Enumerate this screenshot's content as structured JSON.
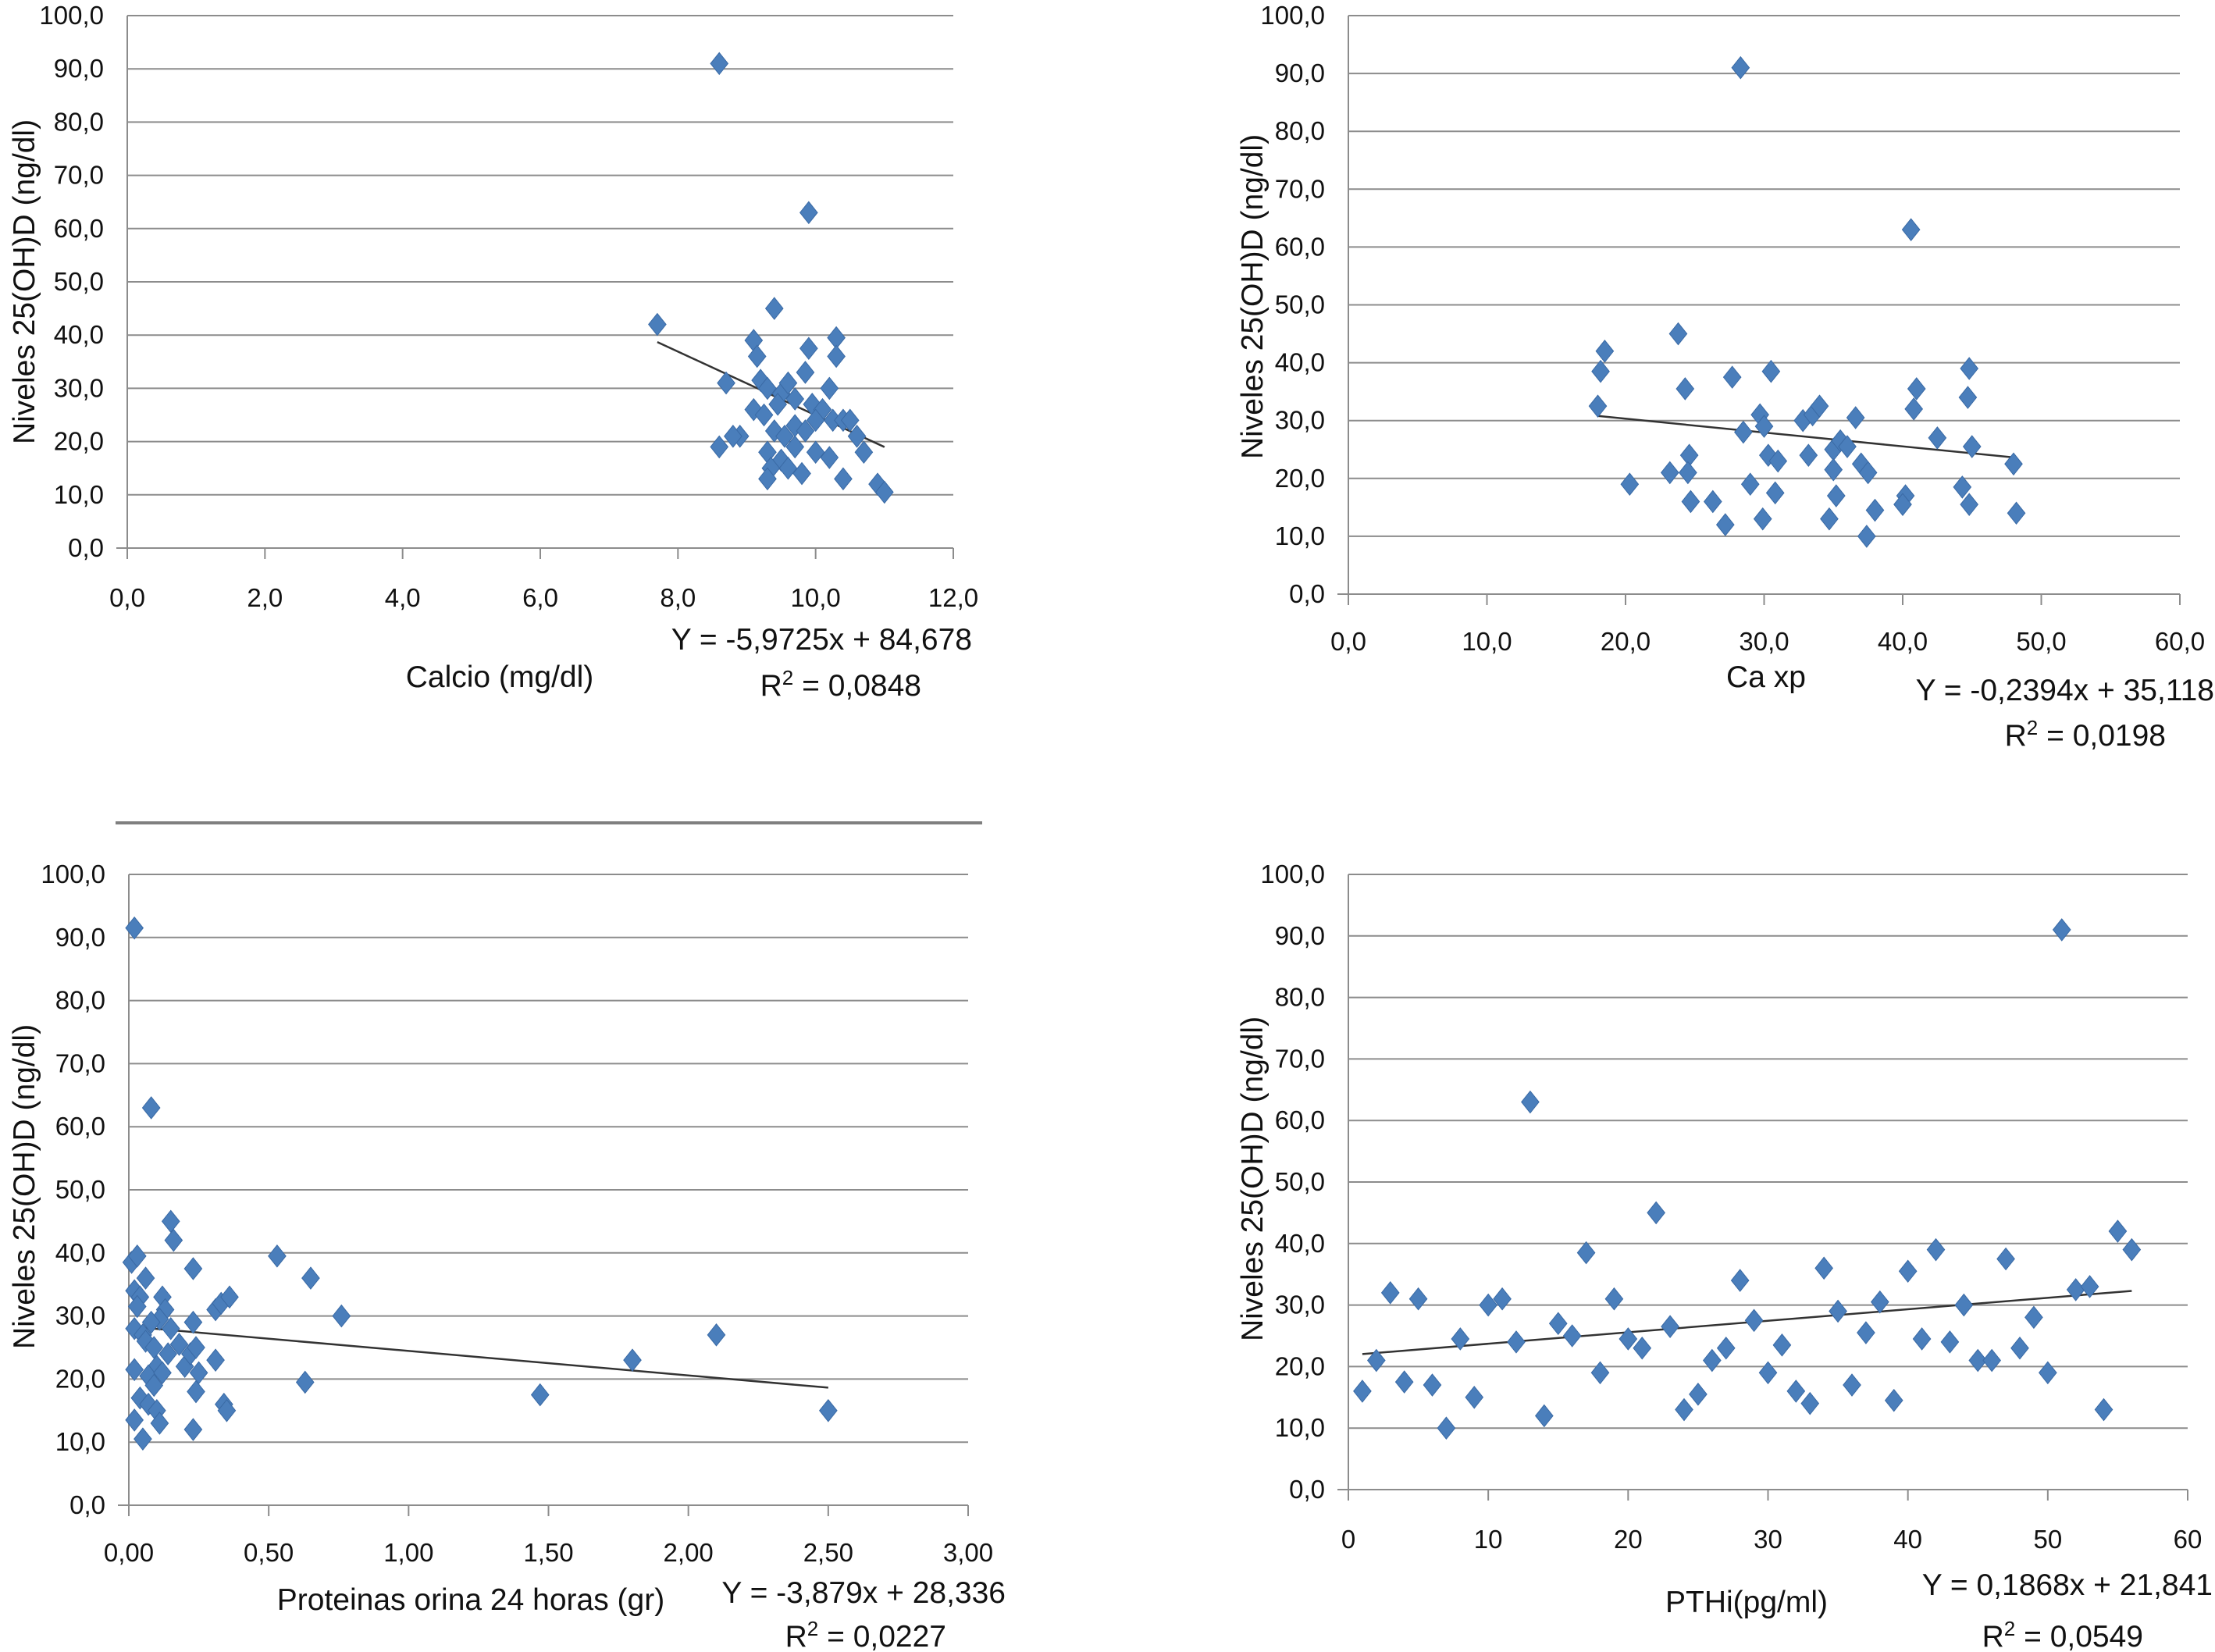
{
  "chart_data": [
    {
      "type": "scatter",
      "xlabel": "Calcio (mg/dl)",
      "ylabel": "Niveles 25(OH)D (ng/dl)",
      "xlim": [
        0,
        12
      ],
      "ylim": [
        0,
        100
      ],
      "xticks": [
        0,
        2,
        4,
        6,
        8,
        10,
        12
      ],
      "xtick_labels": [
        "0,0",
        "2,0",
        "4,0",
        "6,0",
        "8,0",
        "10,0",
        "12,0"
      ],
      "yticks": [
        0,
        10,
        20,
        30,
        40,
        50,
        60,
        70,
        80,
        90,
        100
      ],
      "ytick_labels": [
        "0,0",
        "10,0",
        "20,0",
        "30,0",
        "40,0",
        "50,0",
        "60,0",
        "70,0",
        "80,0",
        "90,0",
        "100,0"
      ],
      "equation": "Y = -5,9725x + 84,678",
      "r2_prefix": "R",
      "r2_sup": "2",
      "r2_value": " = 0,0848",
      "trendline": {
        "slope": -5.9725,
        "intercept": 84.678,
        "x_range": [
          7.7,
          11.0
        ]
      },
      "grid": true,
      "points": [
        [
          8.6,
          91.0
        ],
        [
          9.9,
          63.0
        ],
        [
          7.7,
          42.0
        ],
        [
          9.4,
          45.0
        ],
        [
          9.1,
          39.0
        ],
        [
          9.15,
          36.0
        ],
        [
          9.9,
          37.5
        ],
        [
          10.3,
          39.5
        ],
        [
          10.3,
          36.0
        ],
        [
          9.85,
          33.0
        ],
        [
          9.2,
          31.5
        ],
        [
          9.3,
          30.0
        ],
        [
          9.5,
          29.0
        ],
        [
          9.6,
          31.0
        ],
        [
          8.7,
          31.0
        ],
        [
          9.1,
          26.0
        ],
        [
          9.25,
          25.0
        ],
        [
          9.45,
          27.0
        ],
        [
          9.7,
          28.0
        ],
        [
          9.95,
          27.0
        ],
        [
          10.1,
          26.0
        ],
        [
          10.2,
          30.0
        ],
        [
          10.0,
          24.0
        ],
        [
          10.25,
          24.0
        ],
        [
          10.4,
          24.0
        ],
        [
          10.5,
          24.0
        ],
        [
          9.4,
          22.0
        ],
        [
          9.55,
          21.0
        ],
        [
          9.7,
          23.0
        ],
        [
          9.85,
          22.0
        ],
        [
          8.9,
          21.0
        ],
        [
          8.8,
          21.0
        ],
        [
          8.6,
          19.0
        ],
        [
          9.3,
          18.0
        ],
        [
          9.5,
          16.5
        ],
        [
          9.7,
          19.0
        ],
        [
          10.0,
          18.0
        ],
        [
          9.35,
          15.0
        ],
        [
          9.6,
          15.0
        ],
        [
          9.3,
          13.0
        ],
        [
          9.8,
          14.0
        ],
        [
          10.2,
          17.0
        ],
        [
          10.4,
          13.0
        ],
        [
          10.7,
          18.0
        ],
        [
          10.6,
          21.0
        ],
        [
          10.9,
          12.0
        ],
        [
          11.0,
          10.5
        ]
      ]
    },
    {
      "type": "scatter",
      "xlabel": "Ca xp",
      "ylabel": "Niveles 25(OH)D (ng/dl)",
      "xlim": [
        0,
        60
      ],
      "ylim": [
        0,
        100
      ],
      "xticks": [
        0,
        10,
        20,
        30,
        40,
        50,
        60
      ],
      "xtick_labels": [
        "0,0",
        "10,0",
        "20,0",
        "30,0",
        "40,0",
        "50,0",
        "60,0"
      ],
      "yticks": [
        0,
        10,
        20,
        30,
        40,
        50,
        60,
        70,
        80,
        90,
        100
      ],
      "ytick_labels": [
        "0,0",
        "10,0",
        "20,0",
        "30,0",
        "40,0",
        "50,0",
        "60,0",
        "70,0",
        "80,0",
        "90,0",
        "100,0"
      ],
      "equation": "Y = -0,2394x + 35,118",
      "r2_prefix": "R",
      "r2_sup": "2",
      "r2_value": " = 0,0198",
      "trendline": {
        "slope": -0.2394,
        "intercept": 35.118,
        "x_range": [
          18.0,
          48.0
        ]
      },
      "grid": true,
      "points": [
        [
          28.3,
          91.0
        ],
        [
          40.6,
          63.0
        ],
        [
          18.5,
          42.0
        ],
        [
          18.2,
          38.5
        ],
        [
          18.0,
          32.5
        ],
        [
          23.8,
          45.0
        ],
        [
          24.3,
          35.5
        ],
        [
          27.7,
          37.5
        ],
        [
          30.5,
          38.5
        ],
        [
          41.0,
          35.5
        ],
        [
          40.8,
          32.0
        ],
        [
          44.8,
          39.0
        ],
        [
          44.7,
          34.0
        ],
        [
          29.7,
          31.0
        ],
        [
          30.0,
          29.0
        ],
        [
          28.5,
          28.0
        ],
        [
          32.8,
          30.0
        ],
        [
          33.5,
          31.0
        ],
        [
          34.0,
          32.5
        ],
        [
          36.6,
          30.5
        ],
        [
          42.5,
          27.0
        ],
        [
          45.0,
          25.5
        ],
        [
          24.6,
          24.0
        ],
        [
          30.3,
          24.0
        ],
        [
          31.0,
          23.0
        ],
        [
          33.2,
          24.0
        ],
        [
          35.0,
          25.0
        ],
        [
          35.5,
          26.5
        ],
        [
          36.0,
          25.5
        ],
        [
          37.0,
          22.5
        ],
        [
          37.5,
          21.0
        ],
        [
          23.2,
          21.0
        ],
        [
          24.5,
          21.0
        ],
        [
          20.3,
          19.0
        ],
        [
          24.7,
          16.0
        ],
        [
          26.3,
          16.0
        ],
        [
          29.0,
          19.0
        ],
        [
          30.8,
          17.5
        ],
        [
          35.2,
          17.0
        ],
        [
          38.0,
          14.5
        ],
        [
          40.2,
          17.0
        ],
        [
          40.0,
          15.5
        ],
        [
          44.3,
          18.5
        ],
        [
          44.8,
          15.5
        ],
        [
          48.0,
          22.5
        ],
        [
          48.2,
          14.0
        ],
        [
          27.2,
          12.0
        ],
        [
          29.9,
          13.0
        ],
        [
          34.7,
          13.0
        ],
        [
          37.4,
          10.0
        ],
        [
          35.0,
          21.5
        ]
      ]
    },
    {
      "type": "scatter",
      "xlabel": "Proteinas orina 24 horas (gr)",
      "ylabel": "Niveles 25(OH)D (ng/dl)",
      "xlim": [
        0,
        3
      ],
      "ylim": [
        0,
        100
      ],
      "xticks": [
        0,
        0.5,
        1.0,
        1.5,
        2.0,
        2.5,
        3.0
      ],
      "xtick_labels": [
        "0,00",
        "0,50",
        "1,00",
        "1,50",
        "2,00",
        "2,50",
        "3,00"
      ],
      "yticks": [
        0,
        10,
        20,
        30,
        40,
        50,
        60,
        70,
        80,
        90,
        100
      ],
      "ytick_labels": [
        "0,0",
        "10,0",
        "20,0",
        "30,0",
        "40,0",
        "50,0",
        "60,0",
        "70,0",
        "80,0",
        "90,0",
        "100,0"
      ],
      "equation": "Y = -3,879x + 28,336",
      "r2_prefix": "R",
      "r2_sup": "2",
      "r2_value": " = 0,0227",
      "trendline": {
        "slope": -3.879,
        "intercept": 28.336,
        "x_range": [
          0.0,
          2.5
        ]
      },
      "grid": true,
      "points": [
        [
          0.02,
          91.5
        ],
        [
          0.08,
          63.0
        ],
        [
          0.15,
          45.0
        ],
        [
          0.16,
          42.0
        ],
        [
          0.01,
          38.5
        ],
        [
          0.03,
          39.5
        ],
        [
          0.06,
          36.0
        ],
        [
          0.02,
          34.0
        ],
        [
          0.04,
          33.0
        ],
        [
          0.03,
          31.5
        ],
        [
          0.12,
          33.0
        ],
        [
          0.13,
          31.0
        ],
        [
          0.11,
          29.5
        ],
        [
          0.08,
          29.0
        ],
        [
          0.02,
          28.0
        ],
        [
          0.05,
          27.0
        ],
        [
          0.06,
          26.0
        ],
        [
          0.09,
          25.0
        ],
        [
          0.14,
          24.0
        ],
        [
          0.15,
          28.0
        ],
        [
          0.18,
          25.5
        ],
        [
          0.2,
          22.0
        ],
        [
          0.22,
          24.0
        ],
        [
          0.24,
          25.0
        ],
        [
          0.23,
          29.0
        ],
        [
          0.23,
          37.5
        ],
        [
          0.1,
          22.0
        ],
        [
          0.07,
          20.5
        ],
        [
          0.09,
          19.0
        ],
        [
          0.12,
          21.0
        ],
        [
          0.02,
          21.5
        ],
        [
          0.04,
          17.0
        ],
        [
          0.07,
          16.0
        ],
        [
          0.1,
          15.0
        ],
        [
          0.11,
          13.0
        ],
        [
          0.02,
          13.5
        ],
        [
          0.05,
          10.5
        ],
        [
          0.23,
          12.0
        ],
        [
          0.24,
          18.0
        ],
        [
          0.25,
          21.0
        ],
        [
          0.31,
          23.0
        ],
        [
          0.31,
          31.0
        ],
        [
          0.33,
          32.0
        ],
        [
          0.36,
          33.0
        ],
        [
          0.34,
          16.0
        ],
        [
          0.35,
          15.0
        ],
        [
          0.53,
          39.5
        ],
        [
          0.65,
          36.0
        ],
        [
          0.76,
          30.0
        ],
        [
          0.63,
          19.5
        ],
        [
          1.47,
          17.5
        ],
        [
          1.8,
          23.0
        ],
        [
          2.1,
          27.0
        ],
        [
          2.5,
          15.0
        ]
      ]
    },
    {
      "type": "scatter",
      "xlabel": "PTHi(pg/ml)",
      "ylabel": "Niveles 25(OH)D (ng/dl)",
      "xlim": [
        0,
        60
      ],
      "ylim": [
        0,
        100
      ],
      "xticks": [
        0,
        10,
        20,
        30,
        40,
        50,
        60
      ],
      "xtick_labels": [
        "0",
        "10",
        "20",
        "30",
        "40",
        "50",
        "60"
      ],
      "yticks": [
        0,
        10,
        20,
        30,
        40,
        50,
        60,
        70,
        80,
        90,
        100
      ],
      "ytick_labels": [
        "0,0",
        "10,0",
        "20,0",
        "30,0",
        "40,0",
        "50,0",
        "60,0",
        "70,0",
        "80,0",
        "90,0",
        "100,0"
      ],
      "equation": "Y = 0,1868x + 21,841",
      "r2_prefix": "R",
      "r2_sup": "2",
      "r2_value": " = 0,0549",
      "trendline": {
        "slope": 0.1868,
        "intercept": 21.841,
        "x_range": [
          1.0,
          56.0
        ]
      },
      "grid": true,
      "points": [
        [
          51.0,
          91.0
        ],
        [
          13.0,
          63.0
        ],
        [
          22.0,
          45.0
        ],
        [
          17.0,
          38.5
        ],
        [
          42.0,
          39.0
        ],
        [
          47.0,
          37.5
        ],
        [
          55.0,
          42.0
        ],
        [
          56.0,
          39.0
        ],
        [
          34.0,
          36.0
        ],
        [
          40.0,
          35.5
        ],
        [
          28.0,
          34.0
        ],
        [
          3.0,
          32.0
        ],
        [
          5.0,
          31.0
        ],
        [
          10.0,
          30.0
        ],
        [
          11.0,
          31.0
        ],
        [
          19.0,
          31.0
        ],
        [
          38.0,
          30.5
        ],
        [
          44.0,
          30.0
        ],
        [
          52.0,
          32.5
        ],
        [
          53.0,
          33.0
        ],
        [
          29.0,
          27.5
        ],
        [
          35.0,
          29.0
        ],
        [
          49.0,
          28.0
        ],
        [
          15.0,
          27.0
        ],
        [
          16.0,
          25.0
        ],
        [
          23.0,
          26.5
        ],
        [
          37.0,
          25.5
        ],
        [
          8.0,
          24.5
        ],
        [
          12.0,
          24.0
        ],
        [
          20.0,
          24.5
        ],
        [
          21.0,
          23.0
        ],
        [
          27.0,
          23.0
        ],
        [
          31.0,
          23.5
        ],
        [
          41.0,
          24.5
        ],
        [
          43.0,
          24.0
        ],
        [
          2.0,
          21.0
        ],
        [
          26.0,
          21.0
        ],
        [
          45.0,
          21.0
        ],
        [
          46.0,
          21.0
        ],
        [
          48.0,
          23.0
        ],
        [
          18.0,
          19.0
        ],
        [
          30.0,
          19.0
        ],
        [
          50.0,
          19.0
        ],
        [
          4.0,
          17.5
        ],
        [
          6.0,
          17.0
        ],
        [
          36.0,
          17.0
        ],
        [
          1.0,
          16.0
        ],
        [
          9.0,
          15.0
        ],
        [
          25.0,
          15.5
        ],
        [
          32.0,
          16.0
        ],
        [
          33.0,
          14.0
        ],
        [
          39.0,
          14.5
        ],
        [
          14.0,
          12.0
        ],
        [
          24.0,
          13.0
        ],
        [
          54.0,
          13.0
        ],
        [
          7.0,
          10.0
        ]
      ]
    }
  ]
}
